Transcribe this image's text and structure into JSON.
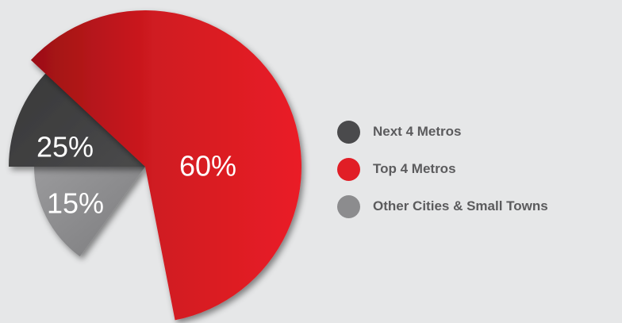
{
  "chart_data": {
    "type": "pie",
    "title": "",
    "slices": [
      {
        "label": "Top 4 Metros",
        "value": 60,
        "value_label": "60%",
        "color": "#e11e26"
      },
      {
        "label": "Next 4 Metros",
        "value": 25,
        "value_label": "25%",
        "color": "#3f3f40"
      },
      {
        "label": "Other Cities & Small Towns",
        "value": 15,
        "value_label": "15%",
        "color": "#8c8c8e"
      }
    ],
    "legend": {
      "placement": "right",
      "order": [
        "Next 4 Metros",
        "Top 4 Metros",
        "Other Cities & Small Towns"
      ]
    }
  },
  "legend_items": [
    {
      "label": "Next 4 Metros",
      "color": "#4a4a4c"
    },
    {
      "label": "Top 4 Metros",
      "color": "#e11e26"
    },
    {
      "label": "Other Cities & Small Towns",
      "color": "#8c8c8e"
    }
  ]
}
